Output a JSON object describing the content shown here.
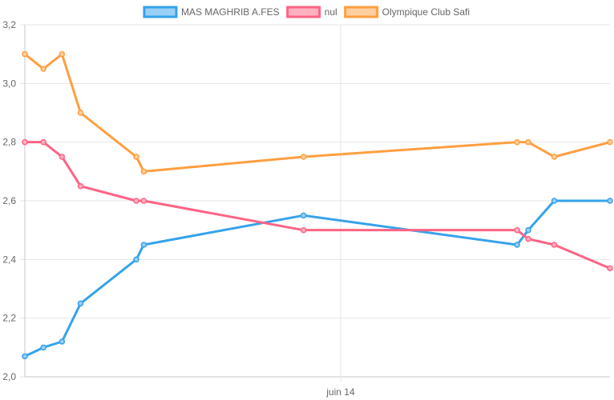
{
  "chart_data": {
    "type": "line",
    "x": [
      0,
      1,
      2,
      3,
      6,
      6.4,
      15,
      26.5,
      27.1,
      28.5,
      31.5
    ],
    "x_ticks": [
      {
        "pos": 17,
        "label": "juin 14"
      }
    ],
    "y_ticks": [
      "2,0",
      "2,2",
      "2,4",
      "2,6",
      "2,8",
      "3,0",
      "3,2"
    ],
    "ylim": [
      2.0,
      3.2
    ],
    "series": [
      {
        "name": "MAS MAGHRIB A.FES",
        "color": "#36a2eb",
        "fill": "#9ad0f5",
        "values": [
          2.07,
          2.1,
          2.12,
          2.25,
          2.4,
          2.45,
          2.55,
          2.45,
          2.5,
          2.6,
          2.6
        ]
      },
      {
        "name": "nul",
        "color": "#ff6384",
        "fill": "#ffb1c1",
        "values": [
          2.8,
          2.8,
          2.75,
          2.65,
          2.6,
          2.6,
          2.5,
          2.5,
          2.47,
          2.45,
          2.37
        ]
      },
      {
        "name": "Olympique Club Safi",
        "color": "#ff9f40",
        "fill": "#ffcf9f",
        "values": [
          3.1,
          3.05,
          3.1,
          2.9,
          2.75,
          2.7,
          2.75,
          2.8,
          2.8,
          2.75,
          2.8
        ]
      }
    ],
    "legend": "top",
    "grid": true
  }
}
